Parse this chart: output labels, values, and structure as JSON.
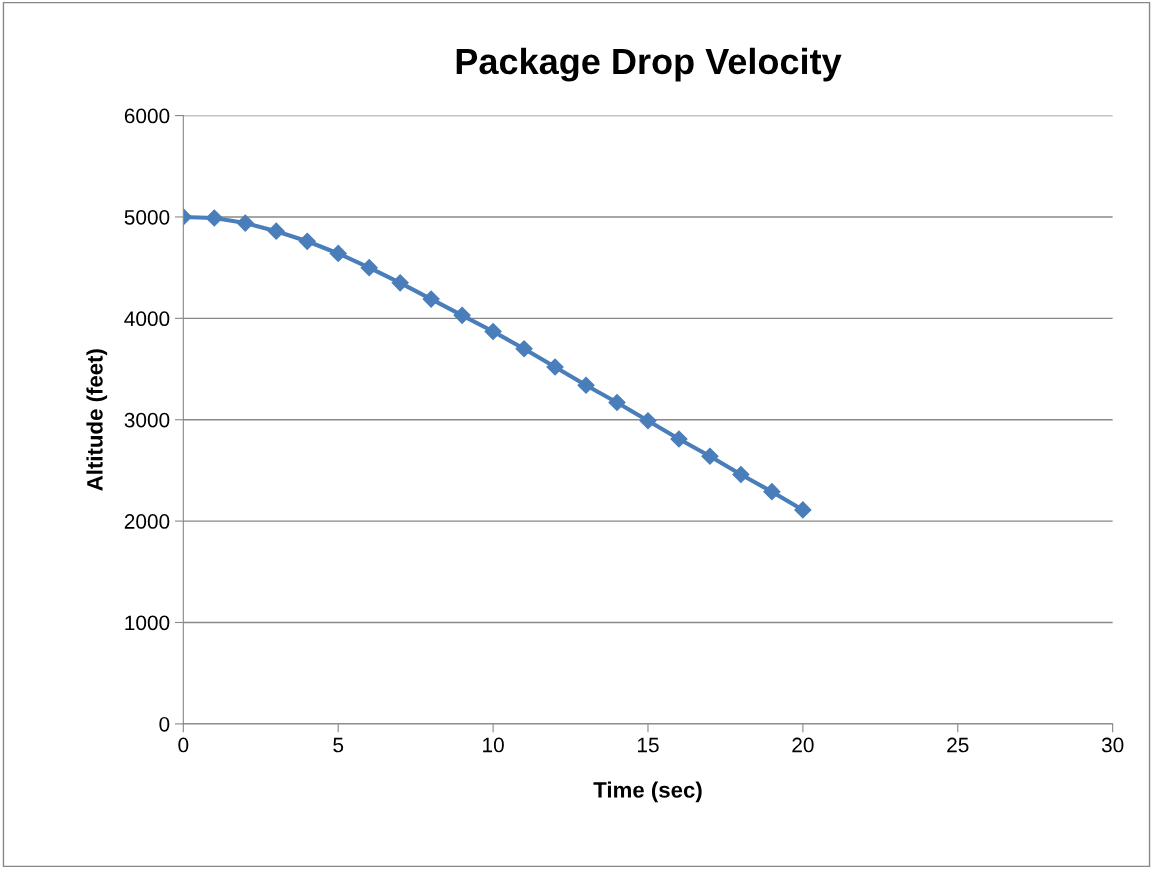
{
  "chart_data": {
    "type": "line",
    "title": "Package Drop Velocity",
    "xlabel": "Time (sec)",
    "ylabel": "Altitude (feet)",
    "x": [
      0,
      1,
      2,
      3,
      4,
      5,
      6,
      7,
      8,
      9,
      10,
      11,
      12,
      13,
      14,
      15,
      16,
      17,
      18,
      19,
      20
    ],
    "series": [
      {
        "color": "#4a7ebb",
        "values": [
          5000,
          4990,
          4940,
          4860,
          4760,
          4640,
          4500,
          4350,
          4190,
          4030,
          3870,
          3700,
          3520,
          3340,
          3170,
          2990,
          2810,
          2640,
          2460,
          2290,
          2110
        ]
      }
    ],
    "xlim": [
      0,
      30
    ],
    "xticks": [
      0,
      5,
      10,
      15,
      20,
      25,
      30
    ],
    "ylim": [
      0,
      6000
    ],
    "yticks": [
      0,
      1000,
      2000,
      3000,
      4000,
      5000,
      6000
    ],
    "grid": "y",
    "marker": "diamond",
    "line_style": "solid"
  }
}
